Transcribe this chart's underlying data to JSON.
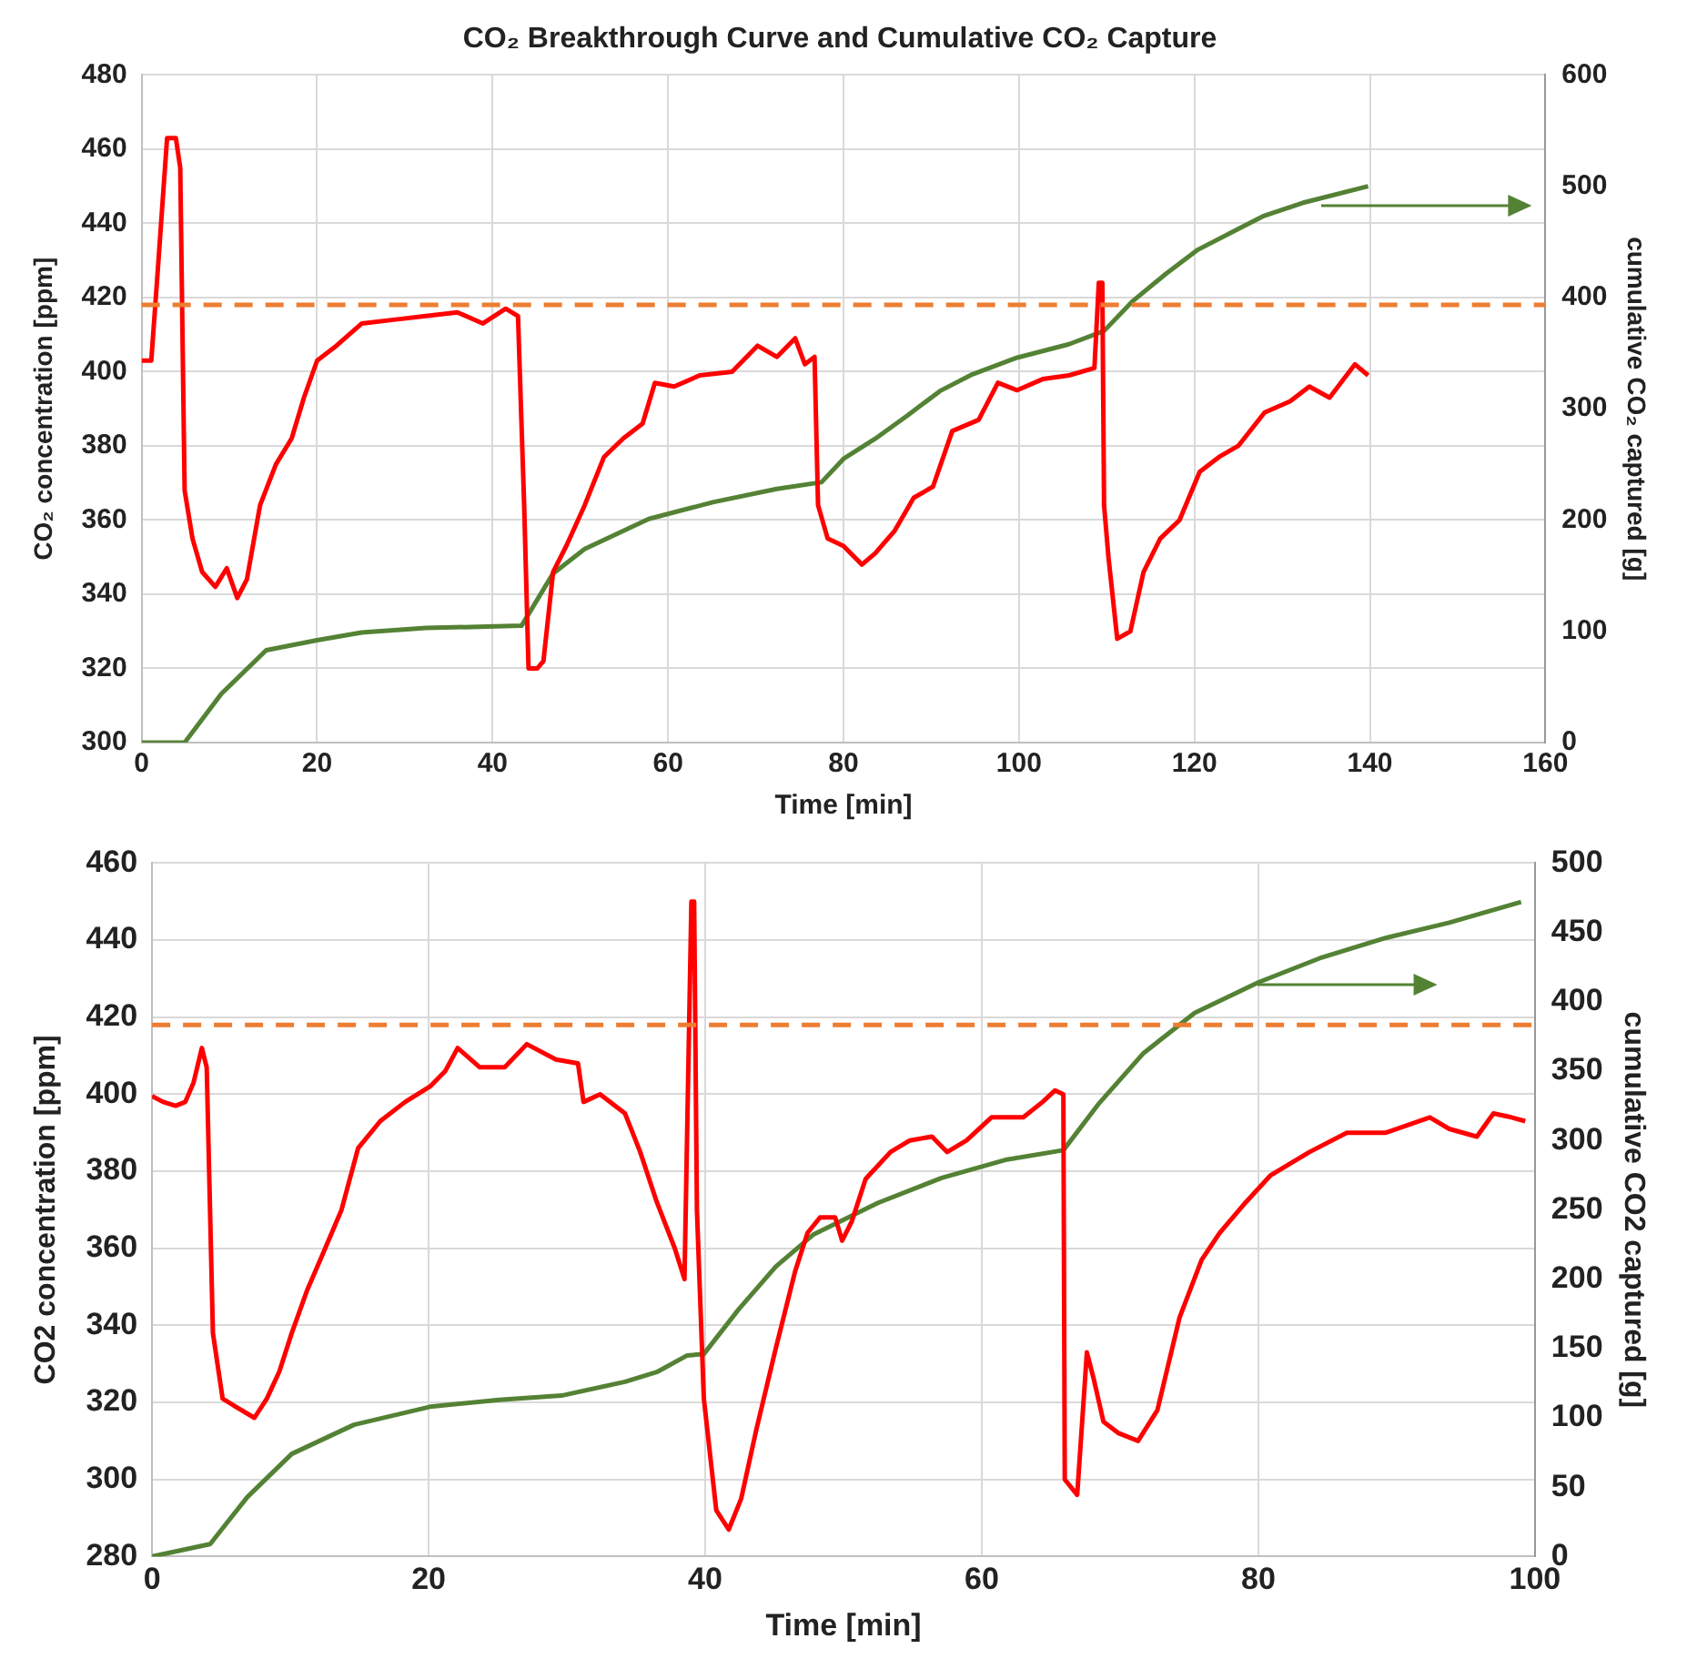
{
  "chart_data": [
    {
      "type": "line",
      "title": "CO₂ Breakthrough Curve and Cumulative CO₂ Capture",
      "xlabel": "Time [min]",
      "ylabel": "CO₂ concentration [ppm]",
      "y2label": "cumulative CO₂ captured [g]",
      "xlim": [
        0,
        160
      ],
      "xticks": [
        0,
        20,
        40,
        60,
        80,
        100,
        120,
        140,
        160
      ],
      "ylim": [
        300,
        480
      ],
      "yticks": [
        300,
        320,
        340,
        360,
        380,
        400,
        420,
        440,
        460,
        480
      ],
      "y2lim": [
        0,
        600
      ],
      "y2ticks": [
        0,
        100,
        200,
        300,
        400,
        500,
        600
      ],
      "grid": true,
      "marker": "none",
      "line_style": "solid",
      "ref_lines": [
        {
          "axis": "y",
          "value": 418,
          "color": "#ed7d31",
          "line_style": "dashed"
        }
      ],
      "series": [
        {
          "color": "#ff0000",
          "x": [
            0,
            1.1,
            1.8,
            2.9,
            3.9,
            4.4,
            4.9,
            5.8,
            6.9,
            8.4,
            9.7,
            10.9,
            12,
            13.5,
            15.3,
            17.1,
            18.5,
            20,
            22.2,
            25.1,
            28.7,
            32.4,
            36,
            38.9,
            41.5,
            42.9,
            43.6,
            44.1,
            45.1,
            45.8,
            46.9,
            48.4,
            50.5,
            52.7,
            54.9,
            57.1,
            58.5,
            60.7,
            63.6,
            67.3,
            70.2,
            72.4,
            74.5,
            75.6,
            76.7,
            77.1,
            78.2,
            80,
            82.1,
            83.6,
            85.8,
            88,
            90.2,
            92.4,
            95.4,
            97.6,
            99.8,
            102.7,
            105.7,
            108.6,
            109.1,
            109.5,
            109.7,
            110.2,
            111.2,
            112.7,
            114.2,
            116.1,
            118.3,
            120.6,
            122.8,
            125,
            128,
            130.9,
            133.1,
            135.4,
            138.3,
            139.8
          ],
          "values": [
            403,
            403,
            426,
            463,
            463,
            455,
            368,
            355,
            346,
            342,
            347,
            339,
            344,
            364,
            375,
            382,
            393,
            403,
            407,
            413,
            414,
            415,
            416,
            413,
            417,
            415,
            364,
            320,
            320,
            322,
            346,
            353,
            364,
            377,
            382,
            386,
            397,
            396,
            399,
            400,
            407,
            404,
            409,
            402,
            404,
            364,
            355,
            353,
            348,
            351,
            357,
            366,
            369,
            384,
            387,
            397,
            395,
            398,
            399,
            401,
            424,
            424,
            364,
            350,
            328,
            330,
            346,
            355,
            360,
            373,
            377,
            380,
            389,
            392,
            396,
            393,
            402,
            399
          ]
        },
        {
          "color": "#548235",
          "axis": "y2",
          "x": [
            0,
            4.9,
            9.1,
            14.2,
            20,
            25.1,
            32.4,
            43.3,
            46.9,
            50.5,
            57.8,
            65.1,
            72.4,
            77.5,
            80,
            83.6,
            87.3,
            91,
            94.7,
            99.8,
            105.7,
            109.7,
            113,
            116.7,
            120.4,
            124.1,
            127.8,
            132.3,
            139.8
          ],
          "values": [
            0,
            0,
            44,
            83,
            92,
            99,
            103,
            105,
            152,
            174,
            201,
            216,
            228,
            234,
            255,
            273,
            294,
            316,
            331,
            346,
            358,
            370,
            397,
            421,
            443,
            458,
            473,
            485,
            500
          ]
        }
      ]
    },
    {
      "type": "line",
      "xlabel": "Time [min]",
      "ylabel": "CO2 concentration [ppm]",
      "y2label": "cumulative CO2 captured [g]",
      "xlim": [
        0,
        100
      ],
      "xticks": [
        0,
        20,
        40,
        60,
        80,
        100
      ],
      "ylim": [
        280,
        460
      ],
      "yticks": [
        280,
        300,
        320,
        340,
        360,
        380,
        400,
        420,
        440,
        460
      ],
      "y2lim": [
        0,
        500
      ],
      "y2ticks": [
        0,
        50,
        100,
        150,
        200,
        250,
        300,
        350,
        400,
        450,
        500
      ],
      "grid": true,
      "marker": "none",
      "line_style": "solid",
      "ref_lines": [
        {
          "axis": "y",
          "value": 418,
          "color": "#ed7d31",
          "line_style": "dashed"
        }
      ],
      "series": [
        {
          "color": "#ff0000",
          "x": [
            0,
            0.8,
            1.7,
            2.4,
            3,
            3.6,
            3.95,
            4.4,
            5.1,
            6,
            7.4,
            8.3,
            9.2,
            10.1,
            11.2,
            12.4,
            13.7,
            14.9,
            16.5,
            18.3,
            20.1,
            21.2,
            22.1,
            23.7,
            25.5,
            27.1,
            29.2,
            30.8,
            31.2,
            32.4,
            34.2,
            35.3,
            36.5,
            37.8,
            38.5,
            39,
            39.2,
            39.4,
            39.9,
            40.8,
            41.7,
            42.6,
            43.7,
            45.1,
            46.5,
            47.4,
            48.3,
            49.4,
            49.9,
            50.6,
            51.6,
            53.4,
            54.8,
            56.4,
            57.5,
            58.9,
            60.7,
            63,
            64.4,
            65.3,
            65.9,
            66,
            66.9,
            67.6,
            68.1,
            68.8,
            69.9,
            71.3,
            72.7,
            74.3,
            75.9,
            77.2,
            79.1,
            80.9,
            83.7,
            86.4,
            89.2,
            92.4,
            93.8,
            95.8,
            97,
            98.3,
            99.3
          ],
          "values": [
            399.5,
            398,
            397,
            398,
            403,
            412,
            407,
            338,
            321,
            319,
            316,
            321,
            328,
            338,
            349,
            359,
            370,
            386,
            393,
            398,
            402,
            406,
            412,
            407,
            407,
            413,
            409,
            408,
            398,
            400,
            395,
            385,
            372,
            360,
            352,
            450,
            450,
            370,
            321,
            292,
            287,
            295,
            313,
            334,
            354,
            364,
            368,
            368,
            362,
            367,
            378,
            385,
            388,
            389,
            385,
            388,
            394,
            394,
            398,
            401,
            400,
            300,
            296,
            333,
            326,
            315,
            312,
            310,
            318,
            342,
            357,
            364,
            372,
            379,
            385,
            390,
            390,
            394,
            391,
            389,
            395,
            394,
            393
          ]
        },
        {
          "color": "#548235",
          "axis": "y2",
          "x": [
            0,
            4.2,
            6.9,
            10.1,
            14.6,
            20.1,
            25.1,
            29.6,
            34.2,
            36.5,
            38.7,
            39.9,
            42.4,
            45.1,
            47.8,
            52.5,
            57.1,
            61.7,
            65.9,
            68.5,
            71.7,
            75.4,
            80,
            84.6,
            89.2,
            93.8,
            99
          ],
          "values": [
            0,
            9,
            43,
            74,
            95,
            108,
            113,
            116,
            126,
            133,
            145,
            146,
            178,
            209,
            232,
            255,
            273,
            286,
            293,
            327,
            363,
            392,
            414,
            432,
            446,
            457,
            472
          ]
        }
      ]
    }
  ]
}
